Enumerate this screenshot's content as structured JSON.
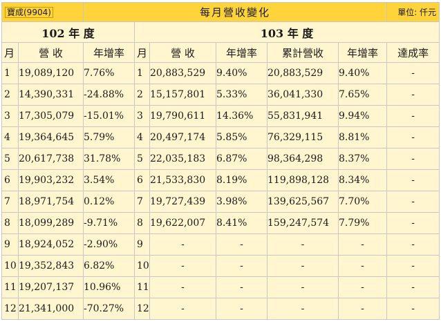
{
  "header": {
    "stock_label": "寶成(9904)",
    "title": "每月營收變化",
    "unit": "單位: 仟元"
  },
  "year_102": {
    "label": "102 年 度",
    "headers": [
      "月",
      "營 收",
      "年增率"
    ]
  },
  "year_103": {
    "label": "103 年 度",
    "headers": [
      "月",
      "營 收",
      "年增率",
      "累計營收",
      "年增率",
      "達成率"
    ]
  },
  "rows": [
    {
      "m102": "1",
      "rev102": "19,089,120",
      "yoy102": "7.76%",
      "m103": "1",
      "rev103": "20,883,529",
      "yoy103": "9.40%",
      "cum103": "20,883,529",
      "cumyoy103": "9.40%",
      "ach103": "-"
    },
    {
      "m102": "2",
      "rev102": "14,390,331",
      "yoy102": "-24.88%",
      "m103": "2",
      "rev103": "15,157,801",
      "yoy103": "5.33%",
      "cum103": "36,041,330",
      "cumyoy103": "7.65%",
      "ach103": "-"
    },
    {
      "m102": "3",
      "rev102": "17,305,079",
      "yoy102": "-15.01%",
      "m103": "3",
      "rev103": "19,790,611",
      "yoy103": "14.36%",
      "cum103": "55,831,941",
      "cumyoy103": "9.94%",
      "ach103": "-"
    },
    {
      "m102": "4",
      "rev102": "19,364,645",
      "yoy102": "5.79%",
      "m103": "4",
      "rev103": "20,497,174",
      "yoy103": "5.85%",
      "cum103": "76,329,115",
      "cumyoy103": "8.81%",
      "ach103": "-"
    },
    {
      "m102": "5",
      "rev102": "20,617,738",
      "yoy102": "31.78%",
      "m103": "5",
      "rev103": "22,035,183",
      "yoy103": "6.87%",
      "cum103": "98,364,298",
      "cumyoy103": "8.37%",
      "ach103": "-"
    },
    {
      "m102": "6",
      "rev102": "19,903,232",
      "yoy102": "3.54%",
      "m103": "6",
      "rev103": "21,533,830",
      "yoy103": "8.19%",
      "cum103": "119,898,128",
      "cumyoy103": "8.34%",
      "ach103": "-"
    },
    {
      "m102": "7",
      "rev102": "18,971,754",
      "yoy102": "0.12%",
      "m103": "7",
      "rev103": "19,727,439",
      "yoy103": "3.98%",
      "cum103": "139,625,567",
      "cumyoy103": "7.70%",
      "ach103": "-"
    },
    {
      "m102": "8",
      "rev102": "18,099,289",
      "yoy102": "-9.71%",
      "m103": "8",
      "rev103": "19,622,007",
      "yoy103": "8.41%",
      "cum103": "159,247,574",
      "cumyoy103": "7.79%",
      "ach103": "-"
    },
    {
      "m102": "9",
      "rev102": "18,924,052",
      "yoy102": "-2.90%",
      "m103": "9",
      "rev103": "-",
      "yoy103": "-",
      "cum103": "-",
      "cumyoy103": "-",
      "ach103": "-"
    },
    {
      "m102": "10",
      "rev102": "19,352,843",
      "yoy102": "6.82%",
      "m103": "10",
      "rev103": "-",
      "yoy103": "-",
      "cum103": "-",
      "cumyoy103": "-",
      "ach103": "-"
    },
    {
      "m102": "11",
      "rev102": "19,207,137",
      "yoy102": "10.96%",
      "m103": "11",
      "rev103": "-",
      "yoy103": "-",
      "cum103": "-",
      "cumyoy103": "-",
      "ach103": "-"
    },
    {
      "m102": "12",
      "rev102": "21,341,000",
      "yoy102": "-70.27%",
      "m103": "12",
      "rev103": "-",
      "yoy103": "-",
      "cum103": "-",
      "cumyoy103": "-",
      "ach103": "-"
    }
  ]
}
